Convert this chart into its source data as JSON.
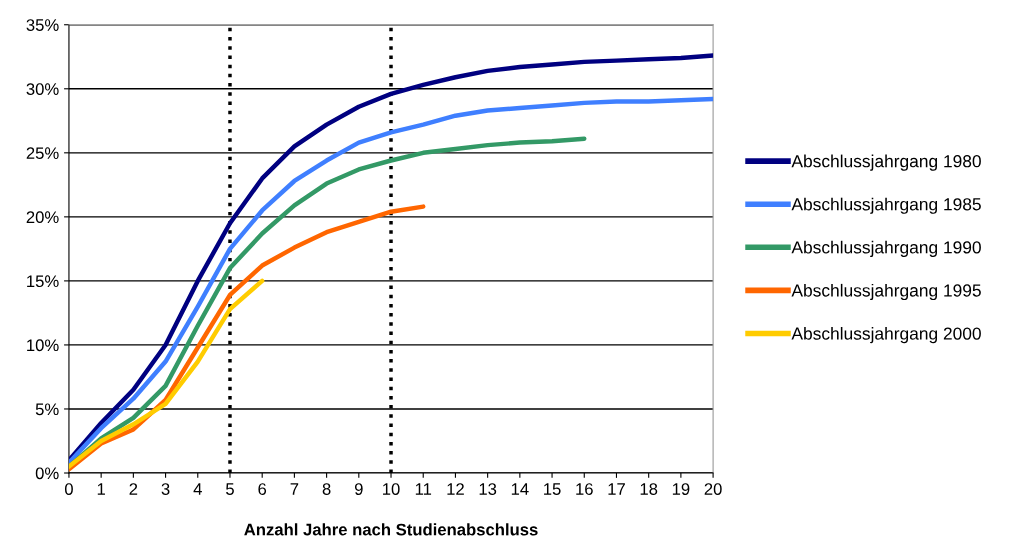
{
  "chart_data": {
    "type": "line",
    "xlabel": "Anzahl Jahre nach Studienabschluss",
    "x": [
      0,
      1,
      2,
      3,
      4,
      5,
      6,
      7,
      8,
      9,
      10,
      11,
      12,
      13,
      14,
      15,
      16,
      17,
      18,
      19,
      20
    ],
    "xlim": [
      0,
      20
    ],
    "xticks": [
      0,
      1,
      2,
      3,
      4,
      5,
      6,
      7,
      8,
      9,
      10,
      11,
      12,
      13,
      14,
      15,
      16,
      17,
      18,
      19,
      20
    ],
    "ylim": [
      0,
      35
    ],
    "yticks": [
      {
        "value": 0,
        "label": "0%"
      },
      {
        "value": 5,
        "label": "5%"
      },
      {
        "value": 10,
        "label": "10%"
      },
      {
        "value": 15,
        "label": "15%"
      },
      {
        "value": 20,
        "label": "20%"
      },
      {
        "value": 25,
        "label": "25%"
      },
      {
        "value": 30,
        "label": "30%"
      },
      {
        "value": 35,
        "label": "35%"
      }
    ],
    "grid": "y",
    "legend": "right",
    "marker": "none",
    "line_style": "solid",
    "ref_lines": [
      {
        "axis": "x",
        "value": 5,
        "color": "#000000",
        "line_style": "dotted"
      },
      {
        "axis": "x",
        "value": 10,
        "color": "#000000",
        "line_style": "dotted"
      }
    ],
    "series": [
      {
        "name": "Abschlussjahrgang 1980",
        "color": "#000080",
        "values": [
          1.0,
          3.9,
          6.5,
          10.0,
          15.0,
          19.5,
          23.0,
          25.5,
          27.2,
          28.6,
          29.6,
          30.3,
          30.9,
          31.4,
          31.7,
          31.9,
          32.1,
          32.2,
          32.3,
          32.4,
          32.6
        ]
      },
      {
        "name": "Abschlussjahrgang 1985",
        "color": "#3f7fff",
        "values": [
          0.8,
          3.5,
          5.8,
          8.7,
          13.0,
          17.5,
          20.5,
          22.8,
          24.4,
          25.8,
          26.6,
          27.2,
          27.9,
          28.3,
          28.5,
          28.7,
          28.9,
          29.0,
          29.0,
          29.1,
          29.2
        ]
      },
      {
        "name": "Abschlussjahrgang 1990",
        "color": "#339966",
        "values": [
          0.5,
          2.7,
          4.3,
          6.8,
          11.5,
          16.0,
          18.7,
          20.9,
          22.6,
          23.7,
          24.4,
          25.0,
          25.3,
          25.6,
          25.8,
          25.9,
          26.1,
          null,
          null,
          null,
          null
        ]
      },
      {
        "name": "Abschlussjahrgang 1995",
        "color": "#ff6600",
        "values": [
          0.3,
          2.3,
          3.4,
          5.7,
          9.8,
          13.9,
          16.2,
          17.6,
          18.8,
          19.6,
          20.4,
          20.8,
          null,
          null,
          null,
          null,
          null,
          null,
          null,
          null,
          null
        ]
      },
      {
        "name": "Abschlussjahrgang 2000",
        "color": "#ffcc00",
        "values": [
          0.5,
          2.5,
          3.8,
          5.4,
          8.7,
          12.8,
          15.0,
          null,
          null,
          null,
          null,
          null,
          null,
          null,
          null,
          null,
          null,
          null,
          null,
          null,
          null
        ]
      }
    ]
  }
}
